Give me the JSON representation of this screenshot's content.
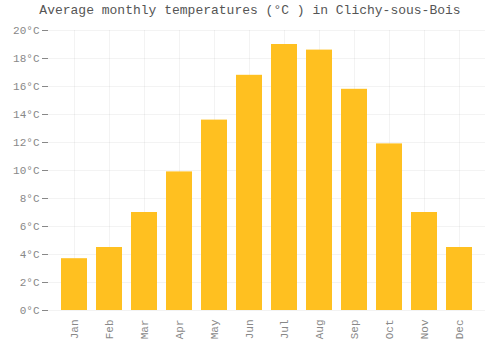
{
  "chart_data": {
    "type": "bar",
    "title": "Average monthly temperatures (°C ) in Clichy-sous-Bois",
    "categories": [
      "Jan",
      "Feb",
      "Mar",
      "Apr",
      "May",
      "Jun",
      "Jul",
      "Aug",
      "Sep",
      "Oct",
      "Nov",
      "Dec"
    ],
    "values": [
      3.7,
      4.5,
      7.0,
      9.9,
      13.6,
      16.8,
      19.0,
      18.6,
      15.8,
      11.9,
      7.0,
      4.5
    ],
    "color": "#FFC020",
    "ylim": [
      0,
      20
    ],
    "yticks": [
      {
        "value": 0,
        "label": "0°C"
      },
      {
        "value": 2,
        "label": "2°C"
      },
      {
        "value": 4,
        "label": "4°C"
      },
      {
        "value": 6,
        "label": "6°C"
      },
      {
        "value": 8,
        "label": "8°C"
      },
      {
        "value": 10,
        "label": "10°C"
      },
      {
        "value": 12,
        "label": "12°C"
      },
      {
        "value": 14,
        "label": "14°C"
      },
      {
        "value": 16,
        "label": "16°C"
      },
      {
        "value": 18,
        "label": "18°C"
      },
      {
        "value": 20,
        "label": "20°C"
      }
    ],
    "grid": true
  }
}
